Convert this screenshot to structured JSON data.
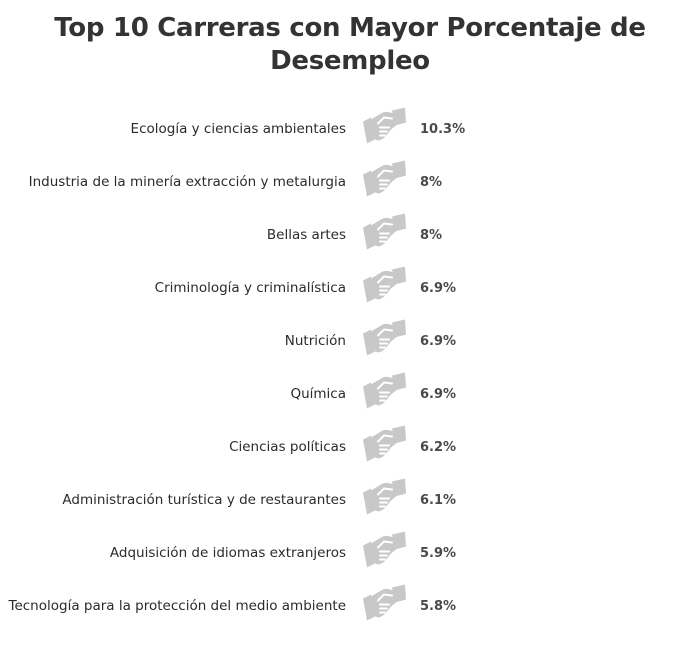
{
  "chart_data": {
    "type": "bar",
    "title": "Top 10 Carreras con Mayor Porcentaje de Desempleo",
    "title_lines": [
      "Top 10 Carreras con Mayor Porcentaje de",
      "Desempleo"
    ],
    "icon": "handshake-icon",
    "unit": "%",
    "fill_color": "#4a8a80",
    "empty_color": "#c8c8c8",
    "scale_max": 100,
    "categories": [
      "Ecología y ciencias ambientales",
      "Industria de la minería extracción y metalurgia",
      "Bellas artes",
      "Criminología y criminalística",
      "Nutrición",
      "Química",
      "Ciencias políticas",
      "Administración turística y de restaurantes",
      "Adquisición de idiomas extranjeros",
      "Tecnología para la protección del medio ambiente"
    ],
    "values": [
      10.3,
      8,
      8,
      6.9,
      6.9,
      6.9,
      6.2,
      6.1,
      5.9,
      5.8
    ],
    "value_labels": [
      "10.3%",
      "8%",
      "8%",
      "6.9%",
      "6.9%",
      "6.9%",
      "6.2%",
      "6.1%",
      "5.9%",
      "5.8%"
    ]
  }
}
